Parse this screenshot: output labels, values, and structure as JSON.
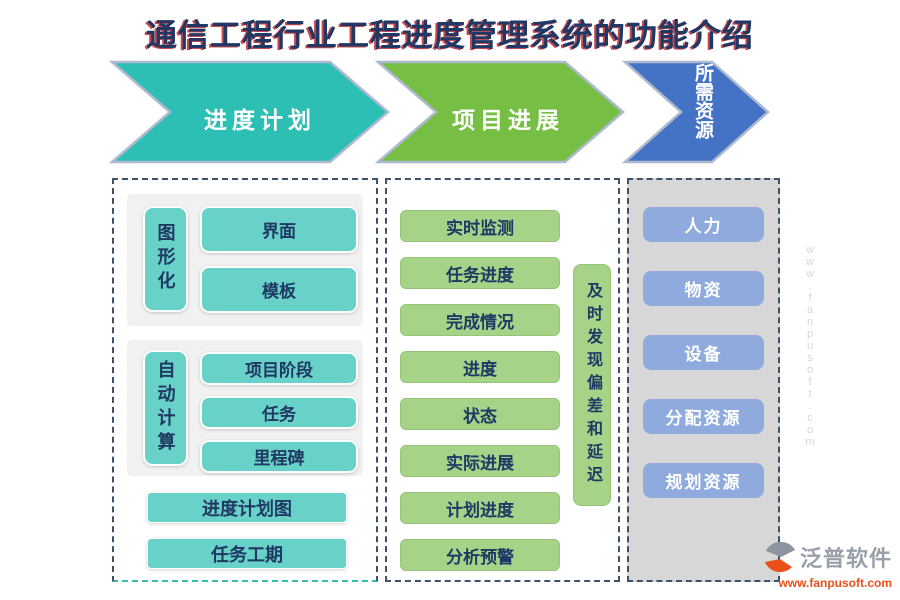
{
  "title": {
    "text": "通信工程行业工程进度管理系统的功能介绍"
  },
  "arrows": [
    {
      "label": "进度计划",
      "color": "#2dbfb4"
    },
    {
      "label": "项目进展",
      "color": "#77be44"
    },
    {
      "label": "所需资源",
      "color": "#4472c4"
    }
  ],
  "panel1": {
    "groups": [
      {
        "side_label": "图形化",
        "items": [
          "界面",
          "模板"
        ]
      },
      {
        "side_label": "自动计算",
        "items": [
          "项目阶段",
          "任务",
          "里程碑"
        ]
      }
    ],
    "standalone": [
      "进度计划图",
      "任务工期"
    ]
  },
  "panel2": {
    "items": [
      "实时监测",
      "任务进度",
      "完成情况",
      "进度",
      "状态",
      "实际进展",
      "计划进度",
      "分析预警"
    ],
    "side_label": "及时发现偏差和延迟"
  },
  "panel3": {
    "items": [
      "人力",
      "物资",
      "设备",
      "分配资源",
      "规划资源"
    ]
  },
  "watermark": {
    "text": "www.fanpusoft.com"
  },
  "logo": {
    "name": "泛普软件",
    "url": "www.fanpusoft.com"
  },
  "colors": {
    "arrow_teal": "#2dbfb4",
    "arrow_green": "#77be44",
    "arrow_blue": "#4472c4",
    "arrow_border": "#aeb9cf",
    "box_teal": "#68d2c8",
    "box_green": "#a6d387",
    "box_blue": "#8faadc",
    "panel_gray": "#d7d7d7",
    "group_gray": "#f1f1f1",
    "text_navy": "#1f3864",
    "dash_border": "#3c526d",
    "title_navy": "#203864",
    "title_red_shadow": "#be282d",
    "logo_orange": "#e8511c",
    "logo_gray": "#99a0a9"
  }
}
